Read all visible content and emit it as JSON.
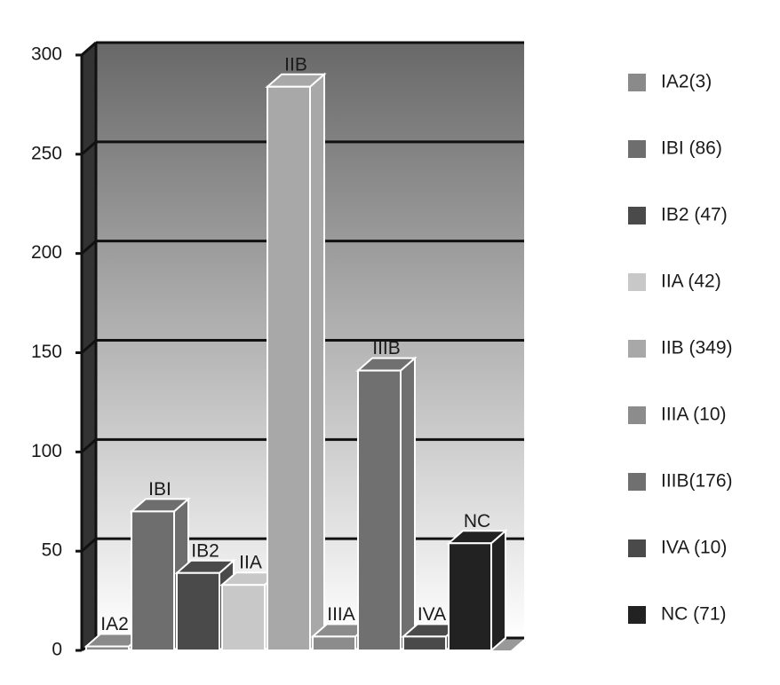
{
  "chart_data": {
    "type": "bar3d",
    "categories": [
      "IA2",
      "IBI",
      "IB2",
      "IIA",
      "IIB",
      "IIIA",
      "IIIB",
      "IVA",
      "NC"
    ],
    "values": [
      2,
      70,
      39,
      33,
      284,
      7,
      141,
      7,
      54
    ],
    "colors": [
      "#8a8a8a",
      "#6e6e6e",
      "#4a4a4a",
      "#c8c8c8",
      "#a8a8a8",
      "#8c8c8c",
      "#707070",
      "#4a4a4a",
      "#222222"
    ],
    "legend": [
      "IA2(3)",
      "IBI (86)",
      "IB2 (47)",
      "IIA (42)",
      "IIB (349)",
      "IIIA (10)",
      "IIIB(176)",
      "IVA (10)",
      "NC (71)"
    ],
    "ylim": [
      0,
      300
    ],
    "yticks": [
      0,
      50,
      100,
      150,
      200,
      250,
      300
    ],
    "grid": true
  }
}
